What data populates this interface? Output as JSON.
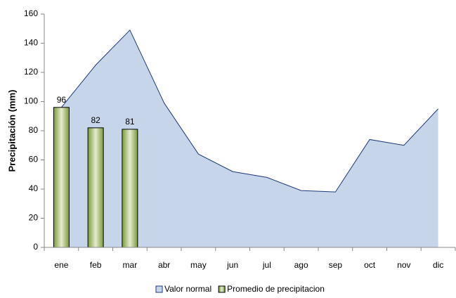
{
  "chart_data": {
    "type": "area-bar",
    "y_label": "Precipitación (mm)",
    "categories": [
      "ene",
      "feb",
      "mar",
      "abr",
      "may",
      "jun",
      "jul",
      "ago",
      "sep",
      "oct",
      "nov",
      "dic"
    ],
    "series": [
      {
        "name": "Valor normal",
        "type": "area",
        "color": "#c6d5ea",
        "line_color": "#1f3a78",
        "values": [
          96,
          125,
          149,
          99,
          64,
          52,
          48,
          39,
          38,
          74,
          70,
          95
        ]
      },
      {
        "name": "Promedio de precipitacion",
        "type": "bar",
        "color": "#9bbb59",
        "values": [
          96,
          82,
          81,
          null,
          null,
          null,
          null,
          null,
          null,
          null,
          null,
          null
        ]
      }
    ],
    "ylim": [
      0,
      160
    ],
    "yticks": [
      0,
      20,
      40,
      60,
      80,
      100,
      120,
      140,
      160
    ],
    "grid": false,
    "legend": "bottom"
  }
}
